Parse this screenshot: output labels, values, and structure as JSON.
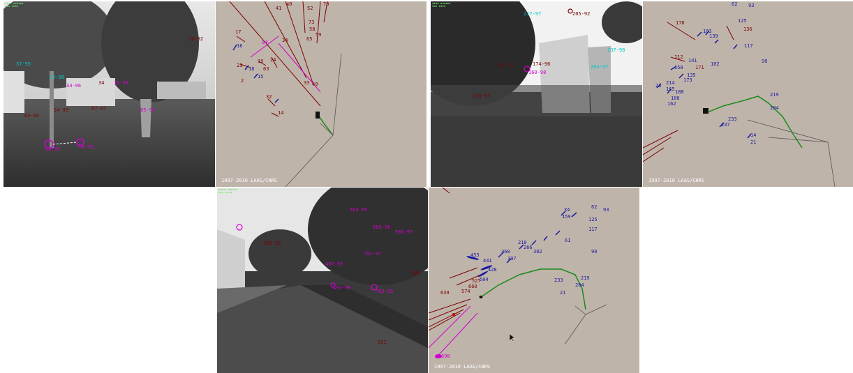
{
  "copyright": "1997-2010 LAAS/CNRS",
  "panels": [
    {
      "id": "p1",
      "kind": "camera",
      "labels": [
        {
          "t": "70-92",
          "c": "#7a0000"
        },
        {
          "t": "34",
          "c": "#7a0000"
        },
        {
          "t": "24-93",
          "c": "#7a0000"
        },
        {
          "t": "67-97",
          "c": "#7a0000"
        },
        {
          "t": "63-94",
          "c": "#7a0000"
        },
        {
          "t": "19-98",
          "c": "#00c8c8"
        },
        {
          "t": "37-95",
          "c": "#00c8c8"
        },
        {
          "t": "33-96",
          "c": "#d000d0"
        },
        {
          "t": "16-98",
          "c": "#d000d0"
        },
        {
          "t": "76-95",
          "c": "#d000d0"
        },
        {
          "t": "26-95",
          "c": "#d000d0"
        },
        {
          "t": "85-96",
          "c": "#d000d0"
        }
      ]
    },
    {
      "id": "p2",
      "kind": "map",
      "labels": [
        {
          "t": "41",
          "c": "#7a0000"
        },
        {
          "t": "40",
          "c": "#7a0000"
        },
        {
          "t": "52",
          "c": "#7a0000"
        },
        {
          "t": "70",
          "c": "#7a0000"
        },
        {
          "t": "73",
          "c": "#7a0000"
        },
        {
          "t": "58",
          "c": "#7a0000"
        },
        {
          "t": "59",
          "c": "#7a0000"
        },
        {
          "t": "65",
          "c": "#7a0000"
        },
        {
          "t": "17",
          "c": "#7a0000"
        },
        {
          "t": "19",
          "c": "#7a0000"
        },
        {
          "t": "24",
          "c": "#7a0000"
        },
        {
          "t": "23",
          "c": "#7a0000"
        },
        {
          "t": "63",
          "c": "#7a0000"
        },
        {
          "t": "34",
          "c": "#7a0000"
        },
        {
          "t": "33",
          "c": "#7a0000"
        },
        {
          "t": "49",
          "c": "#7a0000"
        },
        {
          "t": "32",
          "c": "#7a0000"
        },
        {
          "t": "14",
          "c": "#7a0000"
        },
        {
          "t": "16",
          "c": "#1a1aa0"
        },
        {
          "t": "18",
          "c": "#1a1aa0"
        },
        {
          "t": "15",
          "c": "#1a1aa0"
        },
        {
          "t": "84",
          "c": "#d000d0"
        },
        {
          "t": "2",
          "c": "#7a0000"
        }
      ]
    },
    {
      "id": "p3",
      "kind": "camera",
      "labels": [
        {
          "t": "205-92",
          "c": "#7a0000"
        },
        {
          "t": "217-97",
          "c": "#00c8c8"
        },
        {
          "t": "237-98",
          "c": "#00c8c8"
        },
        {
          "t": "204-97",
          "c": "#00c8c8"
        },
        {
          "t": "160-98",
          "c": "#d000d0"
        },
        {
          "t": "174-96",
          "c": "#7a0000"
        },
        {
          "t": "157-97",
          "c": "#7a0000"
        },
        {
          "t": "116-97",
          "c": "#7a0000"
        }
      ]
    },
    {
      "id": "p4",
      "kind": "map",
      "labels": [
        {
          "t": "178",
          "c": "#7a0000"
        },
        {
          "t": "62",
          "c": "#1a1aa0"
        },
        {
          "t": "93",
          "c": "#1a1aa0"
        },
        {
          "t": "125",
          "c": "#1a1aa0"
        },
        {
          "t": "136",
          "c": "#7a0000"
        },
        {
          "t": "163",
          "c": "#1a1aa0"
        },
        {
          "t": "139",
          "c": "#1a1aa0"
        },
        {
          "t": "117",
          "c": "#1a1aa0"
        },
        {
          "t": "212",
          "c": "#7a0000"
        },
        {
          "t": "141",
          "c": "#1a1aa0"
        },
        {
          "t": "171",
          "c": "#7a0000"
        },
        {
          "t": "102",
          "c": "#1a1aa0"
        },
        {
          "t": "90",
          "c": "#1a1aa0"
        },
        {
          "t": "158",
          "c": "#1a1aa0"
        },
        {
          "t": "135",
          "c": "#1a1aa0"
        },
        {
          "t": "173",
          "c": "#1a1aa0"
        },
        {
          "t": "23",
          "c": "#1a1aa0"
        },
        {
          "t": "214",
          "c": "#1a1aa0"
        },
        {
          "t": "165",
          "c": "#1a1aa0"
        },
        {
          "t": "188",
          "c": "#1a1aa0"
        },
        {
          "t": "180",
          "c": "#1a1aa0"
        },
        {
          "t": "162",
          "c": "#1a1aa0"
        },
        {
          "t": "219",
          "c": "#1a1aa0"
        },
        {
          "t": "204",
          "c": "#1a1aa0"
        },
        {
          "t": "233",
          "c": "#1a1aa0"
        },
        {
          "t": "237",
          "c": "#1a1aa0"
        },
        {
          "t": "14",
          "c": "#1a1aa0"
        },
        {
          "t": "21",
          "c": "#1a1aa0"
        }
      ]
    },
    {
      "id": "p5",
      "kind": "camera",
      "labels": [
        {
          "t": "528-92",
          "c": "#7a0000"
        },
        {
          "t": "563-95",
          "c": "#d000d0"
        },
        {
          "t": "583-96",
          "c": "#d000d0"
        },
        {
          "t": "581-97",
          "c": "#d000d0"
        },
        {
          "t": "701-97",
          "c": "#d000d0"
        },
        {
          "t": "763-95",
          "c": "#d000d0"
        },
        {
          "t": "497-95",
          "c": "#d000d0"
        },
        {
          "t": "497-96",
          "c": "#d000d0"
        },
        {
          "t": "589",
          "c": "#7a0000"
        },
        {
          "t": "591",
          "c": "#7a0000"
        }
      ]
    },
    {
      "id": "p6",
      "kind": "map",
      "labels": [
        {
          "t": "34",
          "c": "#1a1aa0"
        },
        {
          "t": "62",
          "c": "#1a1aa0"
        },
        {
          "t": "93",
          "c": "#1a1aa0"
        },
        {
          "t": "159",
          "c": "#1a1aa0"
        },
        {
          "t": "125",
          "c": "#1a1aa0"
        },
        {
          "t": "117",
          "c": "#1a1aa0"
        },
        {
          "t": "210",
          "c": "#1a1aa0"
        },
        {
          "t": "266",
          "c": "#1a1aa0"
        },
        {
          "t": "360",
          "c": "#1a1aa0"
        },
        {
          "t": "61",
          "c": "#1a1aa0"
        },
        {
          "t": "90",
          "c": "#1a1aa0"
        },
        {
          "t": "453",
          "c": "#1a1aa0"
        },
        {
          "t": "441",
          "c": "#1a1aa0"
        },
        {
          "t": "428",
          "c": "#1a1aa0"
        },
        {
          "t": "397",
          "c": "#1a1aa0"
        },
        {
          "t": "504",
          "c": "#1a1aa0"
        },
        {
          "t": "527",
          "c": "#7a0000"
        },
        {
          "t": "660",
          "c": "#7a0000"
        },
        {
          "t": "574",
          "c": "#7a0000"
        },
        {
          "t": "639",
          "c": "#7a0000"
        },
        {
          "t": "233",
          "c": "#1a1aa0"
        },
        {
          "t": "219",
          "c": "#1a1aa0"
        },
        {
          "t": "204",
          "c": "#1a1aa0"
        },
        {
          "t": "21",
          "c": "#1a1aa0"
        },
        {
          "t": "698",
          "c": "#d000d0"
        },
        {
          "t": "382",
          "c": "#1a1aa0"
        }
      ]
    }
  ],
  "icons": {
    "cursor": "cursor-arrow-icon",
    "robot": "robot-marker-icon"
  }
}
